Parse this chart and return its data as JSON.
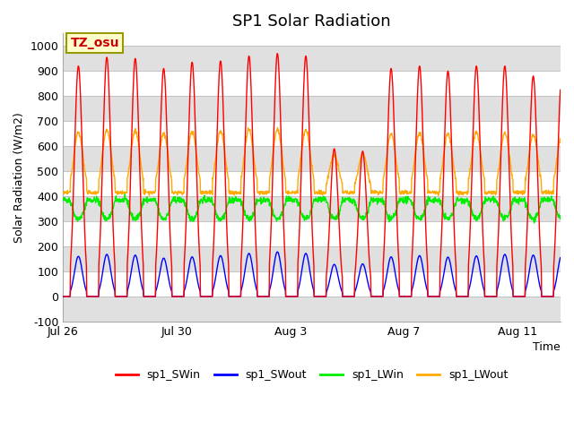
{
  "title": "SP1 Solar Radiation",
  "xlabel": "Time",
  "ylabel": "Solar Radiation (W/m2)",
  "ylim": [
    -100,
    1050
  ],
  "xlim_days": [
    0,
    17.5
  ],
  "xtick_positions": [
    0,
    4,
    8,
    12,
    16
  ],
  "xtick_labels": [
    "Jul 26",
    "Jul 30",
    "Aug 3",
    "Aug 7",
    "Aug 11"
  ],
  "annotation_text": "TZ_osu",
  "annotation_color": "#cc0000",
  "annotation_bg": "#ffffcc",
  "annotation_border": "#999900",
  "colors": {
    "SWin": "#ff0000",
    "SWout": "#0000ff",
    "LWin": "#00ee00",
    "LWout": "#ffaa00"
  },
  "legend_labels": [
    "sp1_SWin",
    "sp1_SWout",
    "sp1_LWin",
    "sp1_LWout"
  ],
  "bg_band_color": "#e0e0e0",
  "grid_color": "#bbbbbb",
  "title_fontsize": 13,
  "axis_label_fontsize": 9,
  "tick_fontsize": 9
}
